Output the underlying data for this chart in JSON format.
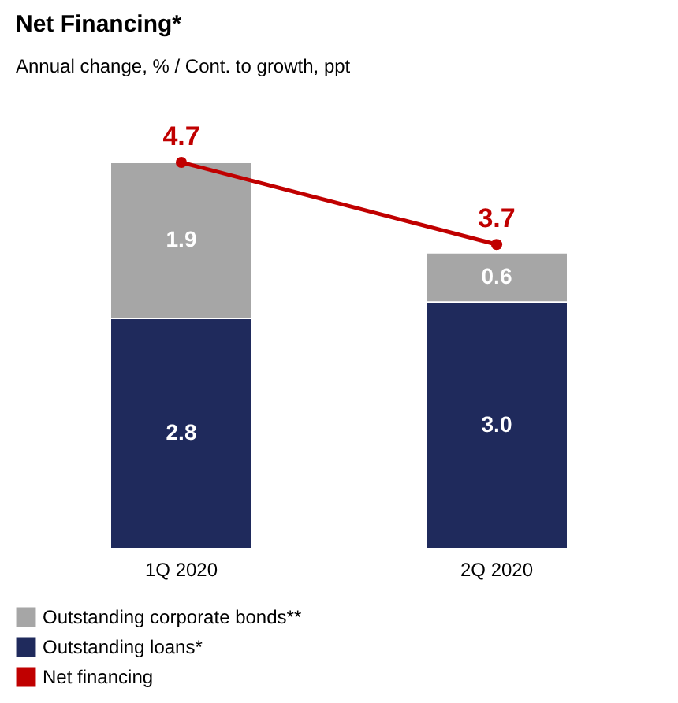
{
  "chart_data": {
    "type": "bar",
    "title": "Net Financing*",
    "subtitle": "Annual change, %  / Cont. to growth, ppt",
    "categories": [
      "1Q 2020",
      "2Q 2020"
    ],
    "stacked": true,
    "legend": "bottom",
    "grid": false,
    "marker": "circle",
    "series": [
      {
        "name": "Outstanding loans*",
        "color": "#1f2a5c",
        "values": [
          2.8,
          3.0
        ],
        "value_labels": [
          "2.8",
          "3.0"
        ]
      },
      {
        "name": "Outstanding corporate bonds**",
        "color": "#a6a6a6",
        "values": [
          1.9,
          0.6
        ],
        "value_labels": [
          "1.9",
          "0.6"
        ]
      },
      {
        "name": "Net financing",
        "type": "line",
        "color": "#c00000",
        "values": [
          4.7,
          3.7
        ],
        "value_labels": [
          "4.7",
          "3.7"
        ]
      }
    ]
  }
}
